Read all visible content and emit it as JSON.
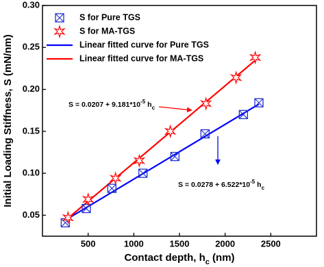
{
  "chart_data": {
    "type": "scatter",
    "x_label": [
      "Contact depth, h",
      "c",
      " (nm)"
    ],
    "y_label": "Initial Loading Stiffness, S (mN/nm)",
    "xlim": [
      0,
      3000
    ],
    "xticks": [
      500,
      1000,
      1500,
      2000,
      2500
    ],
    "ylim": [
      0.025,
      0.3
    ],
    "yticks": [
      {
        "value": 0.05,
        "label": "0.05"
      },
      {
        "value": 0.1,
        "label": "0.10"
      },
      {
        "value": 0.15,
        "label": "0.15"
      },
      {
        "value": 0.2,
        "label": "0.20"
      },
      {
        "value": 0.25,
        "label": "0.25"
      },
      {
        "value": 0.3,
        "label": "0.30"
      }
    ],
    "legend": "upper left",
    "series": [
      {
        "name": "S for Pure TGS",
        "color": "#1f2fd0",
        "mode": "square-x",
        "x": [
          250,
          480,
          760,
          1100,
          1450,
          1780,
          2200,
          2370
        ],
        "values": [
          0.041,
          0.058,
          0.082,
          0.1,
          0.12,
          0.147,
          0.17,
          0.184
        ]
      },
      {
        "name": "S for MA-TGS",
        "color": "#ff0000",
        "mode": "star",
        "x": [
          280,
          500,
          800,
          1060,
          1400,
          1790,
          2120,
          2330
        ],
        "values": [
          0.047,
          0.069,
          0.094,
          0.115,
          0.15,
          0.183,
          0.214,
          0.238
        ]
      },
      {
        "name": "Linear fitted curve for Pure TGS",
        "color": "#0000ff",
        "mode": "line",
        "x": [
          250,
          2370
        ],
        "values": [
          0.0441,
          0.1824
        ]
      },
      {
        "name": "Linear fitted curve for MA-TGS",
        "color": "#ff0000",
        "mode": "line",
        "x": [
          280,
          2330
        ],
        "values": [
          0.0464,
          0.2346
        ]
      }
    ],
    "annotations": [
      {
        "parts": [
          "S = 0.0207 + 9.181*10",
          "-5",
          " h",
          "c"
        ]
      },
      {
        "parts": [
          "S = 0.0278 + 6.522*10",
          "-5",
          " h",
          "c"
        ]
      }
    ]
  }
}
